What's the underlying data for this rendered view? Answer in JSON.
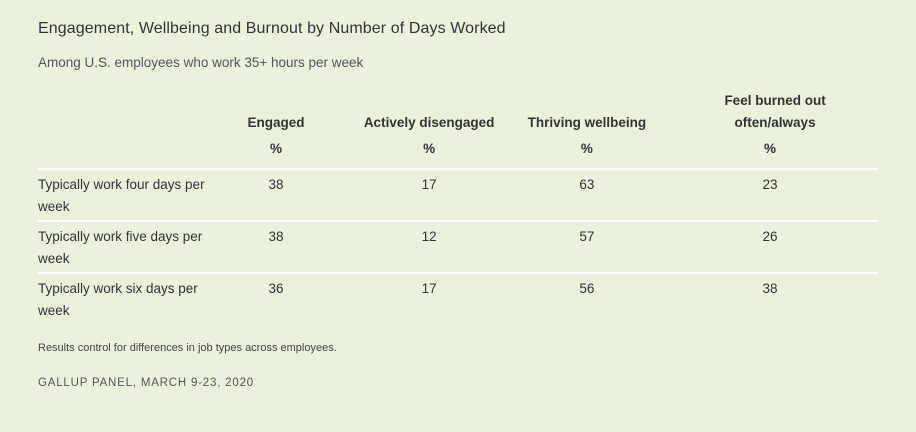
{
  "chart_data": {
    "type": "table",
    "title": "Engagement, Wellbeing and Burnout by Number of Days Worked",
    "subtitle": "Among U.S. employees who work 35+ hours per week",
    "columns": [
      {
        "label": "Engaged",
        "unit": "%"
      },
      {
        "label": "Actively disengaged",
        "unit": "%"
      },
      {
        "label": "Thriving wellbeing",
        "unit": "%"
      },
      {
        "label": "Feel burned out often/always",
        "unit": "%"
      }
    ],
    "rows": [
      {
        "label": "Typically work four days per week",
        "values": [
          "38",
          "17",
          "63",
          "23"
        ]
      },
      {
        "label": "Typically work five days per week",
        "values": [
          "38",
          "12",
          "57",
          "26"
        ]
      },
      {
        "label": "Typically work six days per week",
        "values": [
          "36",
          "17",
          "56",
          "38"
        ]
      }
    ],
    "note": "Results control for differences in job types across employees.",
    "source": "GALLUP PANEL, MARCH 9-23, 2020"
  }
}
